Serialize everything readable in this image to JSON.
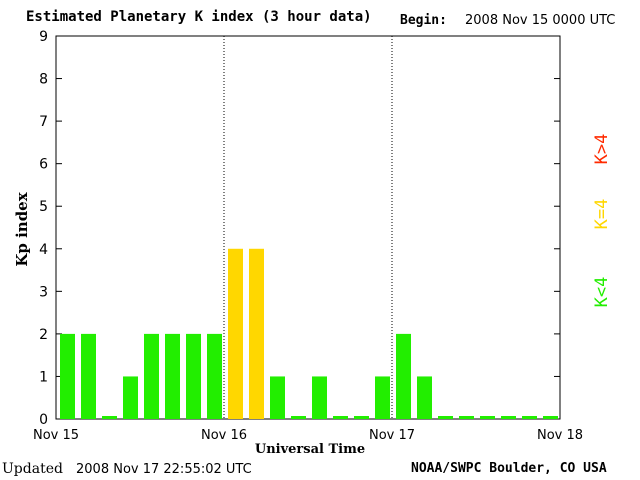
{
  "header": {
    "title": "Estimated Planetary K index (3 hour data)",
    "begin_label": "Begin:",
    "begin_value": "2008 Nov 15 0000 UTC"
  },
  "footer": {
    "updated_label": "Updated",
    "updated_value": "2008 Nov 17 22:55:02 UTC",
    "credit": "NOAA/SWPC Boulder, CO USA"
  },
  "legend": {
    "above": {
      "label": "K>4",
      "color": "#ff2a00"
    },
    "equal": {
      "label": "K=4",
      "color": "#ffd700"
    },
    "below": {
      "label": "K<4",
      "color": "#22ee00"
    }
  },
  "chart_data": {
    "type": "bar",
    "ylabel": "Kp index",
    "xlabel": "Universal Time",
    "ylim": [
      0,
      9
    ],
    "yticks": [
      "0",
      "1",
      "2",
      "3",
      "4",
      "5",
      "6",
      "7",
      "8",
      "9"
    ],
    "x_labels": [
      "Nov 15",
      "Nov 16",
      "Nov 17",
      "Nov 18"
    ],
    "day_separators": [
      1,
      2
    ],
    "bins_per_day": 8,
    "values": [
      2,
      2,
      0,
      1,
      2,
      2,
      2,
      2,
      4,
      4,
      1,
      0,
      1,
      0,
      0,
      1,
      2,
      1,
      0,
      0,
      0,
      0,
      0,
      0
    ]
  }
}
